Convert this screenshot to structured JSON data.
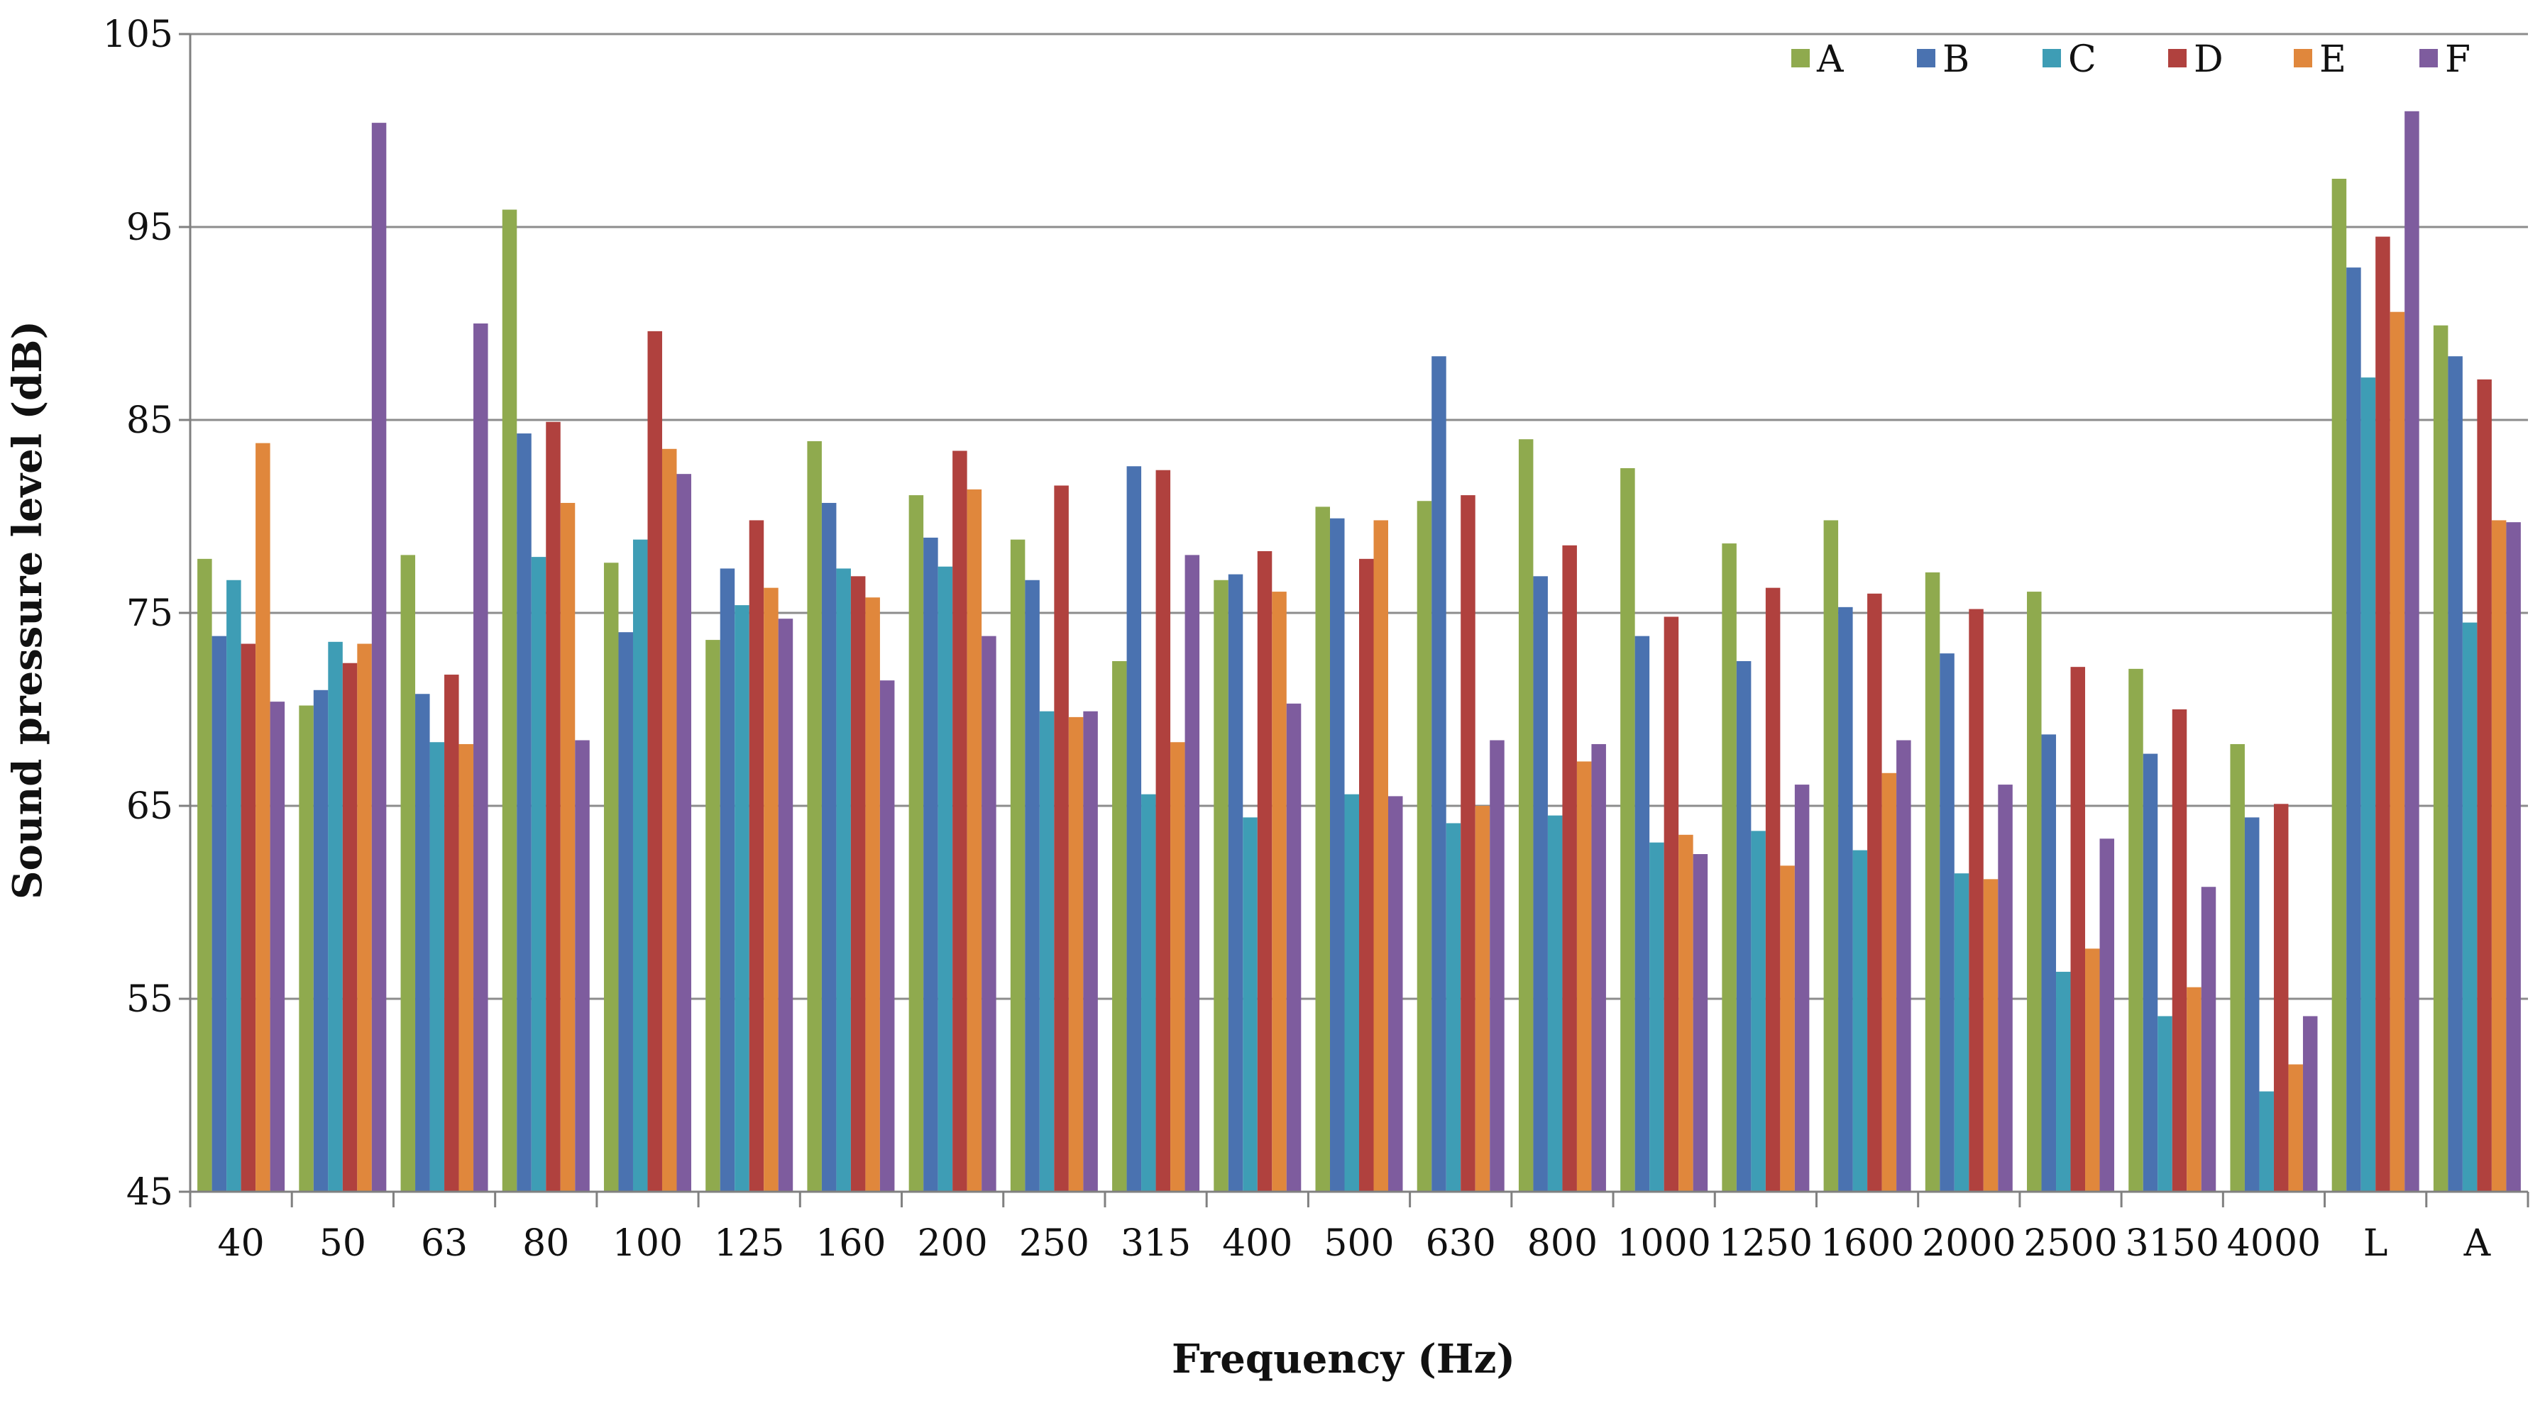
{
  "chart_data": {
    "type": "bar",
    "title": "",
    "xlabel": "Frequency (Hz)",
    "ylabel": "Sound pressure level (dB)",
    "ylim": [
      45,
      105
    ],
    "yticks": [
      45,
      55,
      65,
      75,
      85,
      95,
      105
    ],
    "grid": true,
    "legend_position": "top-right",
    "categories": [
      "40",
      "50",
      "63",
      "80",
      "100",
      "125",
      "160",
      "200",
      "250",
      "315",
      "400",
      "500",
      "630",
      "800",
      "1000",
      "1250",
      "1600",
      "2000",
      "2500",
      "3150",
      "4000",
      "L",
      "A"
    ],
    "series": [
      {
        "name": "A",
        "color": "#8FAA4E",
        "values": [
          77.8,
          70.2,
          78.0,
          95.9,
          77.6,
          73.6,
          83.9,
          81.1,
          78.8,
          72.5,
          76.7,
          80.5,
          80.8,
          84.0,
          82.5,
          78.6,
          79.8,
          77.1,
          76.1,
          72.1,
          68.2,
          97.5,
          89.9
        ]
      },
      {
        "name": "B",
        "color": "#4A72B0",
        "values": [
          73.8,
          71.0,
          70.8,
          84.3,
          74.0,
          77.3,
          80.7,
          78.9,
          76.7,
          82.6,
          77.0,
          79.9,
          88.3,
          76.9,
          73.8,
          72.5,
          75.3,
          72.9,
          68.7,
          67.7,
          64.4,
          92.9,
          88.3
        ]
      },
      {
        "name": "C",
        "color": "#3E9DB5",
        "values": [
          76.7,
          73.5,
          68.3,
          77.9,
          78.8,
          75.4,
          77.3,
          77.4,
          69.9,
          65.6,
          64.4,
          65.6,
          64.1,
          64.5,
          63.1,
          63.7,
          62.7,
          61.5,
          56.4,
          54.1,
          50.2,
          87.2,
          74.5
        ]
      },
      {
        "name": "D",
        "color": "#B0413E",
        "values": [
          73.4,
          72.4,
          71.8,
          84.9,
          89.6,
          79.8,
          76.9,
          83.4,
          81.6,
          82.4,
          78.2,
          77.8,
          81.1,
          78.5,
          74.8,
          76.3,
          76.0,
          75.2,
          72.2,
          70.0,
          65.1,
          94.5,
          87.1
        ]
      },
      {
        "name": "E",
        "color": "#E0873C",
        "values": [
          83.8,
          73.4,
          68.2,
          80.7,
          83.5,
          76.3,
          75.8,
          81.4,
          69.6,
          68.3,
          76.1,
          79.8,
          65.0,
          67.3,
          63.5,
          61.9,
          66.7,
          61.2,
          57.6,
          55.6,
          51.6,
          90.6,
          79.8
        ]
      },
      {
        "name": "F",
        "color": "#7E5C9E",
        "values": [
          70.4,
          100.4,
          90.0,
          68.4,
          82.2,
          74.7,
          71.5,
          73.8,
          69.9,
          78.0,
          70.3,
          65.5,
          68.4,
          68.2,
          62.5,
          66.1,
          68.4,
          66.1,
          63.3,
          60.8,
          54.1,
          101.0,
          79.7
        ]
      }
    ]
  }
}
